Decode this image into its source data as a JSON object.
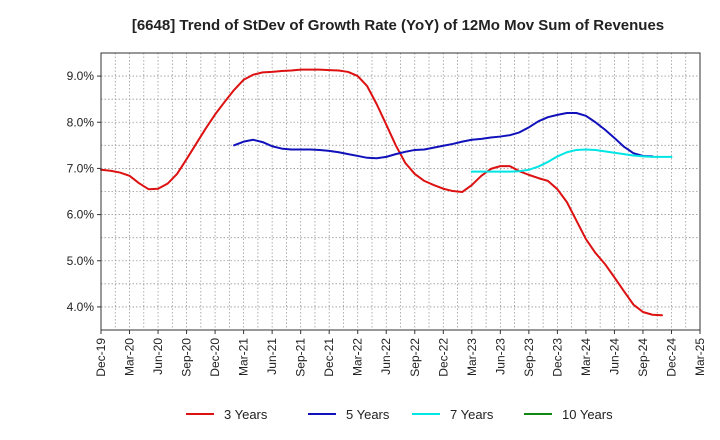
{
  "chart_data": {
    "type": "line",
    "title": "[6648]  Trend of StDev of Growth Rate (YoY) of 12Mo Mov Sum of Revenues",
    "xlabel": "",
    "ylabel": "",
    "ylim": [
      3.5,
      9.5
    ],
    "yticks": [
      4.0,
      5.0,
      6.0,
      7.0,
      8.0,
      9.0
    ],
    "ytick_labels": [
      "4.0%",
      "5.0%",
      "6.0%",
      "7.0%",
      "8.0%",
      "9.0%"
    ],
    "xticks": [
      "Dec-19",
      "Mar-20",
      "Jun-20",
      "Sep-20",
      "Dec-20",
      "Mar-21",
      "Jun-21",
      "Sep-21",
      "Dec-21",
      "Mar-22",
      "Jun-22",
      "Sep-22",
      "Dec-22",
      "Mar-23",
      "Jun-23",
      "Sep-23",
      "Dec-23",
      "Mar-24",
      "Jun-24",
      "Sep-24",
      "Dec-24",
      "Mar-25"
    ],
    "grid": true,
    "legend_position": "bottom",
    "series": [
      {
        "name": "3 Years",
        "color": "#dd1111",
        "start_index": 0,
        "values": [
          6.97,
          6.95,
          6.91,
          6.84,
          6.68,
          6.55,
          6.56,
          6.67,
          6.88,
          7.2,
          7.53,
          7.86,
          8.17,
          8.44,
          8.7,
          8.92,
          9.03,
          9.08,
          9.09,
          9.11,
          9.12,
          9.14,
          9.14,
          9.14,
          9.13,
          9.12,
          9.09,
          9.0,
          8.78,
          8.39,
          7.95,
          7.5,
          7.12,
          6.88,
          6.73,
          6.64,
          6.56,
          6.51,
          6.49,
          6.64,
          6.84,
          6.99,
          7.05,
          7.05,
          6.94,
          6.86,
          6.79,
          6.73,
          6.55,
          6.27,
          5.87,
          5.47,
          5.17,
          4.93,
          4.64,
          4.34,
          4.05,
          3.89,
          3.83,
          3.82
        ]
      },
      {
        "name": "5 Years",
        "color": "#1111bb",
        "start_index": 14,
        "values": [
          7.5,
          7.58,
          7.62,
          7.57,
          7.48,
          7.43,
          7.41,
          7.41,
          7.41,
          7.4,
          7.38,
          7.35,
          7.31,
          7.27,
          7.23,
          7.22,
          7.25,
          7.31,
          7.36,
          7.4,
          7.41,
          7.45,
          7.49,
          7.53,
          7.58,
          7.62,
          7.64,
          7.67,
          7.69,
          7.72,
          7.78,
          7.89,
          8.02,
          8.11,
          8.16,
          8.2,
          8.2,
          8.14,
          8.0,
          7.84,
          7.66,
          7.47,
          7.33,
          7.27,
          7.26
        ]
      },
      {
        "name": "7 Years",
        "color": "#00e5e5",
        "start_index": 39,
        "values": [
          6.93,
          6.93,
          6.93,
          6.93,
          6.93,
          6.94,
          6.97,
          7.04,
          7.14,
          7.26,
          7.35,
          7.4,
          7.41,
          7.4,
          7.37,
          7.34,
          7.31,
          7.28,
          7.26,
          7.25,
          7.25,
          7.25
        ]
      },
      {
        "name": "10 Years",
        "color": "#118811",
        "start_index": 0,
        "values": []
      }
    ]
  }
}
